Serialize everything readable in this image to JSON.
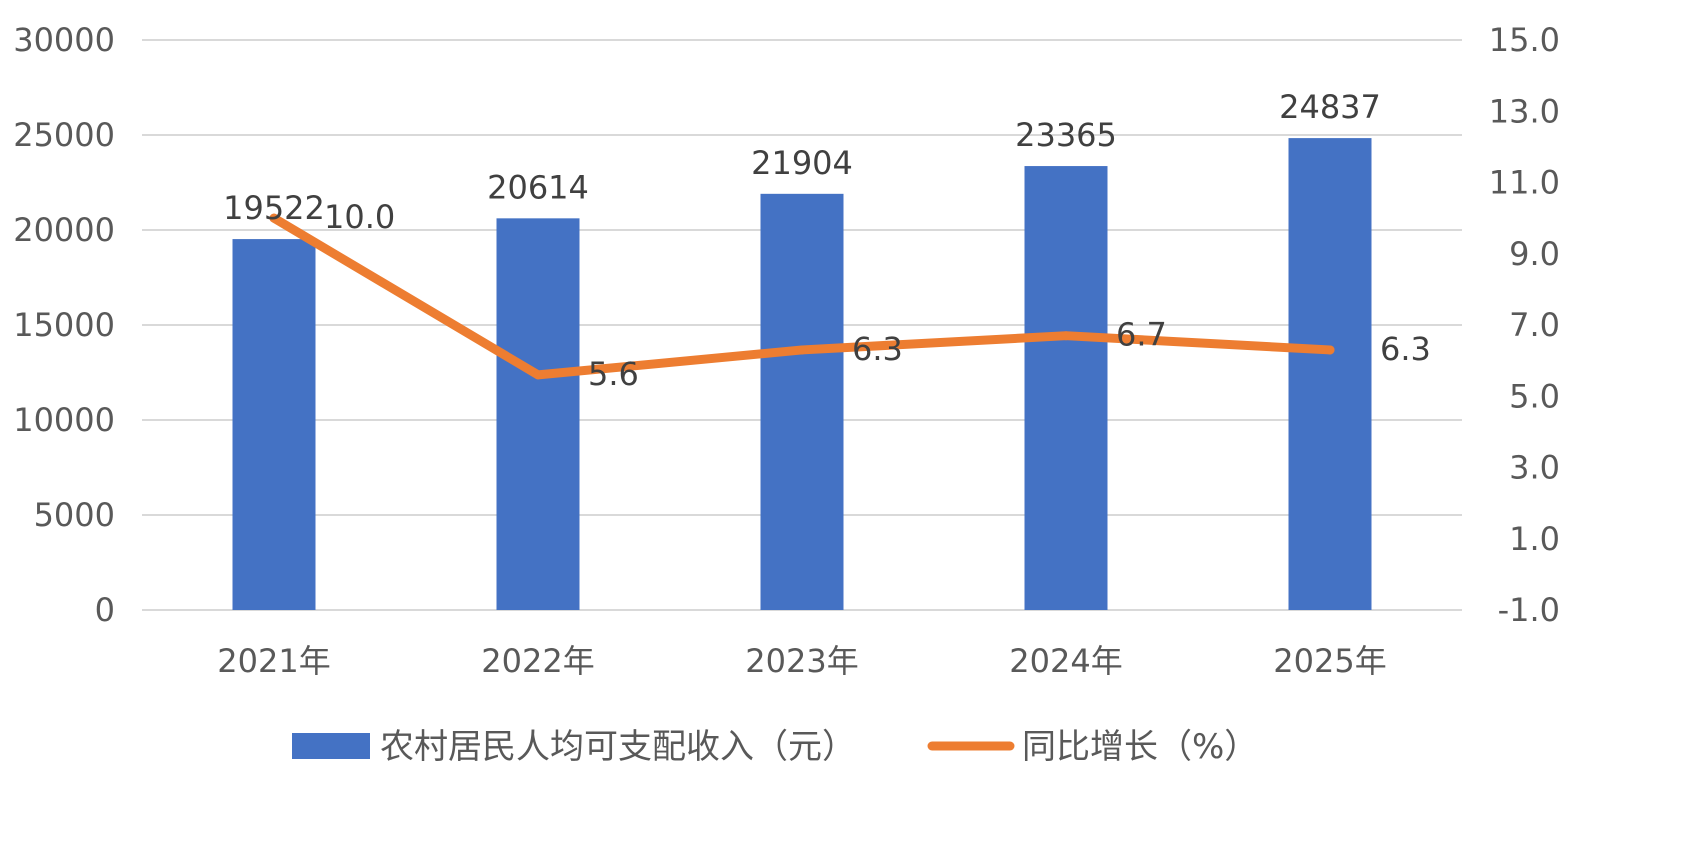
{
  "chart_data": {
    "type": "bar",
    "categories": [
      "2021年",
      "2022年",
      "2023年",
      "2024年",
      "2025年"
    ],
    "series": [
      {
        "name": "农村居民人均可支配收入（元）",
        "type": "bar",
        "axis": "left",
        "color": "#4472C4",
        "values": [
          19522,
          20614,
          21904,
          23365,
          24837
        ],
        "labels": [
          "19522",
          "20614",
          "21904",
          "23365",
          "24837"
        ]
      },
      {
        "name": "同比增长（%）",
        "type": "line",
        "axis": "right",
        "color": "#ED7D31",
        "values": [
          10.0,
          5.6,
          6.3,
          6.7,
          6.3
        ],
        "labels": [
          "10.0",
          "5.6",
          "6.3",
          "6.7",
          "6.3"
        ]
      }
    ],
    "y_left": {
      "range": [
        0,
        30000
      ],
      "ticks": [
        0,
        5000,
        10000,
        15000,
        20000,
        25000,
        30000
      ],
      "tick_labels": [
        "0",
        "5000",
        "10000",
        "15000",
        "20000",
        "25000",
        "30000"
      ]
    },
    "y_right": {
      "range": [
        -1.0,
        15.0
      ],
      "ticks": [
        -1.0,
        1.0,
        3.0,
        5.0,
        7.0,
        9.0,
        11.0,
        13.0,
        15.0
      ],
      "tick_labels": [
        "-1.0",
        "1.0",
        "3.0",
        "5.0",
        "7.0",
        "9.0",
        "11.0",
        "13.0",
        "15.0"
      ]
    },
    "grid": true,
    "legend_position": "bottom"
  }
}
